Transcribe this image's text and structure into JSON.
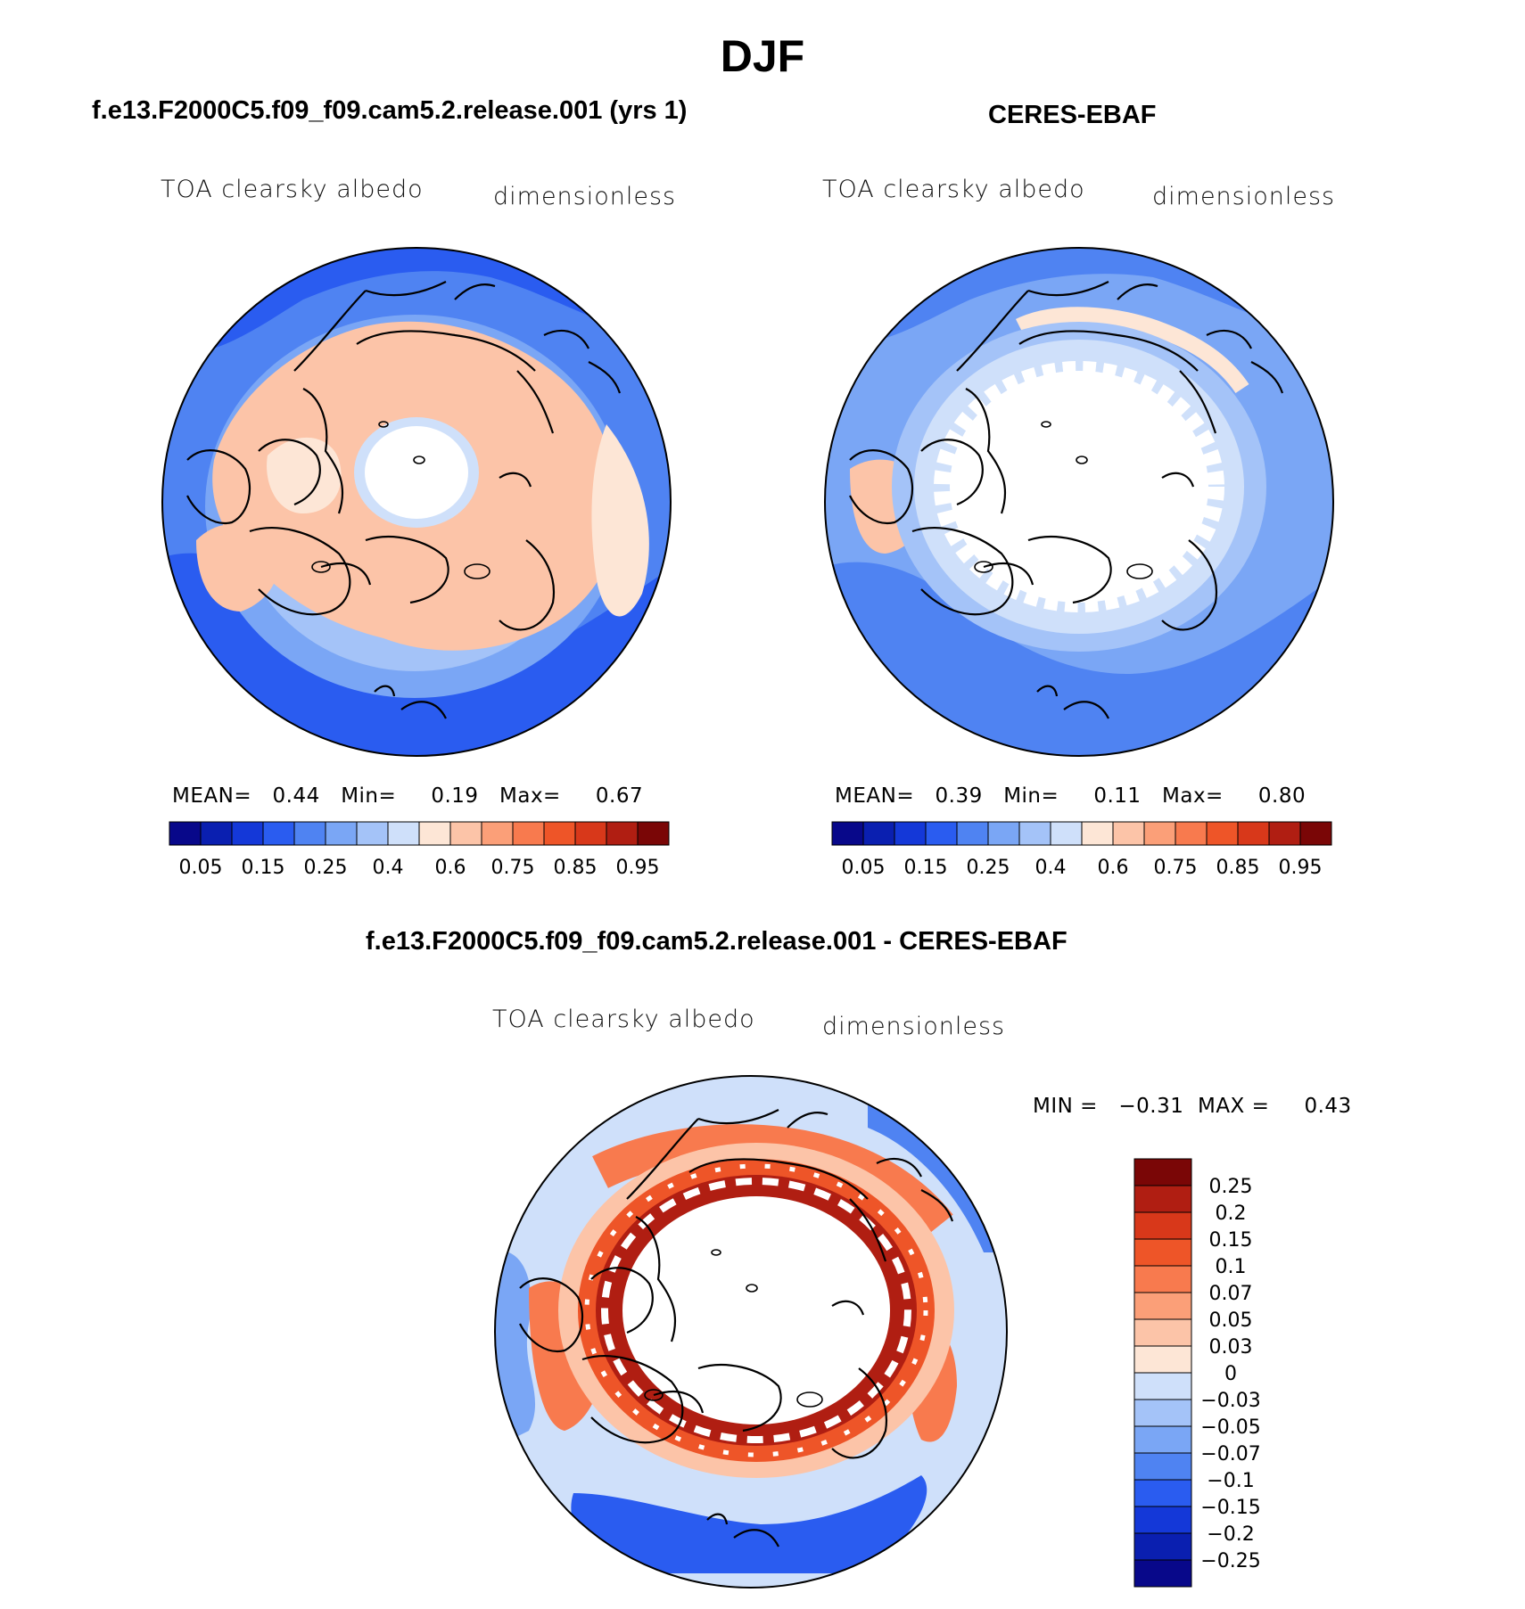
{
  "title": "DJF",
  "panels": [
    {
      "id": "model",
      "header": "f.e13.F2000C5.f09_f09.cam5.2.release.001 (yrs 1)",
      "variable": "TOA clearsky albedo",
      "units": "dimensionless",
      "stats": {
        "mean_label": "MEAN=",
        "mean": "0.44",
        "min_label": "Min=",
        "min": "0.19",
        "max_label": "Max=",
        "max": "0.67"
      }
    },
    {
      "id": "obs",
      "header": "CERES-EBAF",
      "variable": "TOA clearsky albedo",
      "units": "dimensionless",
      "stats": {
        "mean_label": "MEAN=",
        "mean": "0.39",
        "min_label": "Min=",
        "min": "0.11",
        "max_label": "Max=",
        "max": "0.80"
      }
    },
    {
      "id": "diff",
      "header": "f.e13.F2000C5.f09_f09.cam5.2.release.001 - CERES-EBAF",
      "variable": "TOA clearsky albedo",
      "units": "dimensionless",
      "stats": {
        "min_label": "MIN =",
        "min": "−0.31",
        "max_label": "MAX =",
        "max": "0.43"
      }
    }
  ],
  "abs_colorbar": {
    "labels": [
      "0.05",
      "0.15",
      "0.25",
      "0.4",
      "0.6",
      "0.75",
      "0.85",
      "0.95"
    ],
    "colors": [
      "#08088a",
      "#0a1fb0",
      "#1438d8",
      "#2a5cf0",
      "#4f83f2",
      "#7aa6f5",
      "#a4c3f8",
      "#cfe0fa",
      "#fde6d6",
      "#fcc4a8",
      "#fb9f78",
      "#f87a4e",
      "#ee5528",
      "#d8381a",
      "#b01e12",
      "#7a0606"
    ]
  },
  "diff_colorbar": {
    "labels": [
      "0.25",
      "0.2",
      "0.15",
      "0.1",
      "0.07",
      "0.05",
      "0.03",
      "0",
      "−0.03",
      "−0.05",
      "−0.07",
      "−0.1",
      "−0.15",
      "−0.2",
      "−0.25"
    ],
    "colors": [
      "#7a0606",
      "#b01e12",
      "#d8381a",
      "#ee5528",
      "#f87a4e",
      "#fb9f78",
      "#fcc4a8",
      "#fde6d6",
      "#cfe0fa",
      "#a4c3f8",
      "#7aa6f5",
      "#4f83f2",
      "#2a5cf0",
      "#1438d8",
      "#0a1fb0",
      "#08088a"
    ]
  }
}
